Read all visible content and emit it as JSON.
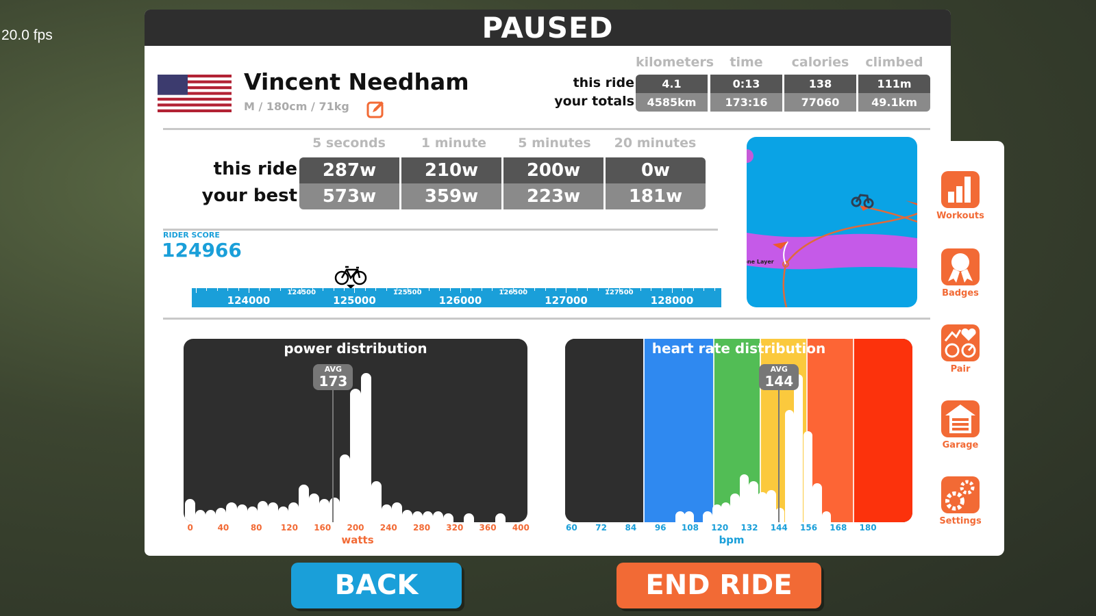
{
  "fps": "20.0 fps",
  "header": {
    "title": "PAUSED"
  },
  "rider": {
    "name": "Vincent Needham",
    "details": "M / 180cm / 71kg",
    "country": "United States",
    "flag_icon": "us-flag-icon"
  },
  "summary": {
    "columns": [
      "kilometers",
      "time",
      "calories",
      "climbed"
    ],
    "rows": [
      {
        "label": "this ride",
        "values": [
          "4.1",
          "0:13",
          "138",
          "111m"
        ]
      },
      {
        "label": "your totals",
        "values": [
          "4585km",
          "173:16",
          "77060",
          "49.1km"
        ]
      }
    ]
  },
  "power_best": {
    "columns": [
      "5 seconds",
      "1 minute",
      "5 minutes",
      "20 minutes"
    ],
    "rows": [
      {
        "label": "this ride",
        "values": [
          "287w",
          "210w",
          "200w",
          "0w"
        ]
      },
      {
        "label": "your best",
        "values": [
          "573w",
          "359w",
          "223w",
          "181w"
        ]
      }
    ]
  },
  "rider_score": {
    "label": "RIDER SCORE",
    "value": "124966",
    "value_num": 124966,
    "ruler": {
      "range": [
        123463,
        128466
      ],
      "major": [
        "124000",
        "125000",
        "126000",
        "127000",
        "128000"
      ],
      "minor": [
        "124500",
        "125500",
        "126500",
        "127500"
      ]
    }
  },
  "map": {
    "label": "Ozone Layer"
  },
  "sidebar": [
    {
      "label": "Workouts",
      "icon": "workouts-chart-icon"
    },
    {
      "label": "Badges",
      "icon": "badge-ribbon-icon"
    },
    {
      "label": "Pair",
      "icon": "pair-sensors-icon"
    },
    {
      "label": "Garage",
      "icon": "garage-icon"
    },
    {
      "label": "Settings",
      "icon": "settings-gears-icon"
    }
  ],
  "buttons": {
    "back": "BACK",
    "end_ride": "END RIDE"
  },
  "colors": {
    "accent_blue": "#1a9fd9",
    "accent_orange": "#f26a35",
    "panel_dark": "#2e2e2e"
  },
  "chart_data": [
    {
      "type": "bar",
      "title": "power distribution",
      "xlabel": "watts",
      "xlim": [
        -8,
        408
      ],
      "bin_width": 12.5,
      "ticks": [
        "0",
        "40",
        "80",
        "120",
        "160",
        "200",
        "240",
        "280",
        "320",
        "360",
        "400"
      ],
      "avg_label": "AVG",
      "avg": 173,
      "avg_text": "173",
      "ylim": [
        0,
        100
      ],
      "values": [
        13,
        7,
        7,
        8,
        11,
        10,
        9,
        12,
        11,
        9,
        11,
        21,
        16,
        13,
        14,
        38,
        75,
        84,
        23,
        10,
        11,
        7,
        6,
        6,
        6,
        5,
        0,
        5,
        0,
        0,
        5
      ]
    },
    {
      "type": "bar",
      "title": "heart rate distribution",
      "xlabel": "bpm",
      "xlim": [
        57.4,
        198
      ],
      "bin_width": 3.8,
      "ticks": [
        "60",
        "72",
        "84",
        "96",
        "108",
        "120",
        "132",
        "144",
        "156",
        "168",
        "180"
      ],
      "avg_label": "AVG",
      "avg": 144,
      "avg_text": "144",
      "ylim": [
        0,
        100
      ],
      "zones": [
        {
          "from": 57.4,
          "to": 89,
          "color": "#2e2e2e"
        },
        {
          "from": 89,
          "to": 117.3,
          "color": "#2f89f0"
        },
        {
          "from": 117.3,
          "to": 136.1,
          "color": "#52bd55"
        },
        {
          "from": 136.1,
          "to": 155,
          "color": "#fbc93d"
        },
        {
          "from": 155,
          "to": 174,
          "color": "#fd6535"
        },
        {
          "from": 174,
          "to": 198,
          "color": "#fc320c"
        }
      ],
      "x": [
        103.9,
        107.6,
        111.3,
        115.1,
        118.9,
        122.4,
        126.1,
        129.9,
        133.7,
        137.2,
        140.9,
        144.3,
        148.2,
        151.8,
        155.7,
        159.5,
        163.2
      ],
      "values": [
        6,
        6,
        0,
        6,
        10,
        11,
        16,
        27,
        23,
        17,
        18,
        8,
        63,
        83,
        51,
        22,
        6
      ]
    }
  ]
}
